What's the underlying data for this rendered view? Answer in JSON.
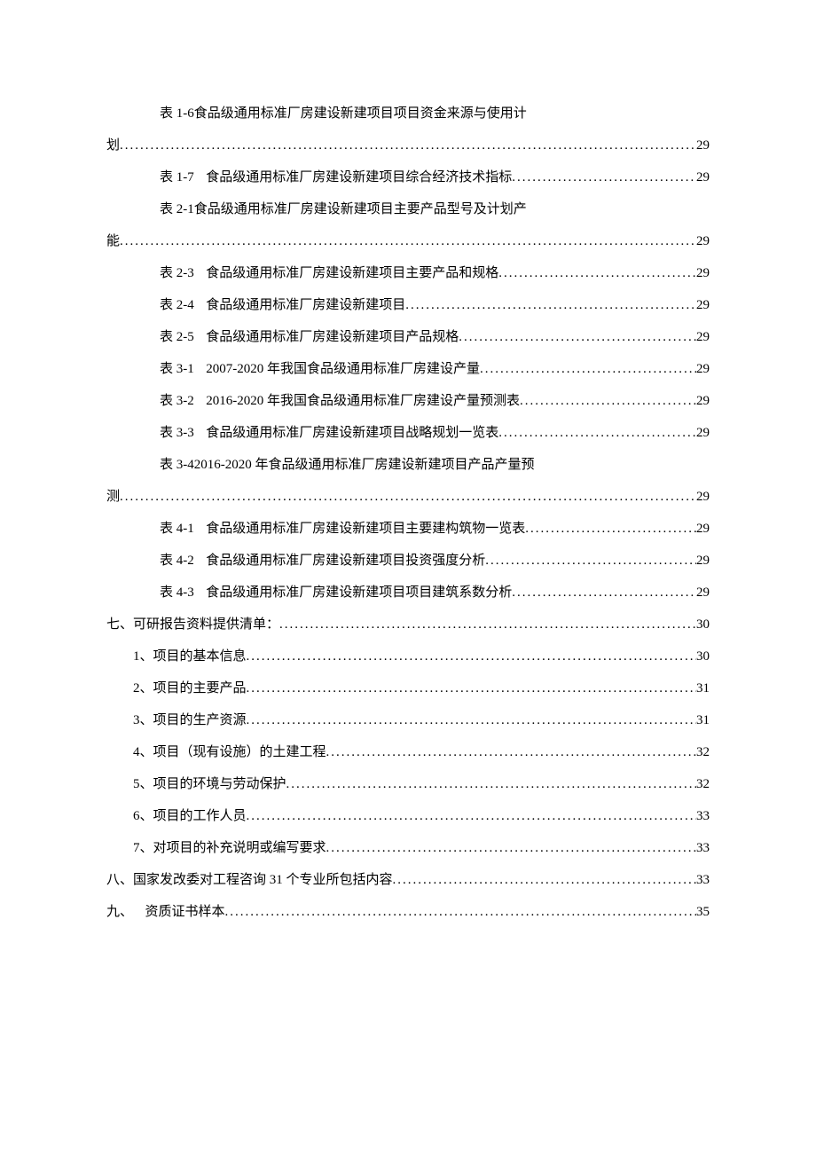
{
  "colors": {
    "text": "#000000",
    "background": "#ffffff"
  },
  "typography": {
    "font_family": "SimSun",
    "font_size_pt": 11,
    "line_height": 2.4
  },
  "toc": {
    "tables": [
      {
        "label": "表 1-6",
        "text_a": "食品级通用标准厂房建设新建项目项目资金来源与使用计",
        "wrap": "划",
        "page": "29"
      },
      {
        "label": "表 1-7",
        "text": "食品级通用标准厂房建设新建项目综合经济技术指标",
        "page": "29"
      },
      {
        "label": "表 2-1",
        "text_a": "食品级通用标准厂房建设新建项目主要产品型号及计划产",
        "wrap": "能",
        "page": "29"
      },
      {
        "label": "表 2-3",
        "text": "食品级通用标准厂房建设新建项目主要产品和规格",
        "page": "29"
      },
      {
        "label": "表 2-4",
        "text": "食品级通用标准厂房建设新建项目",
        "page": "29"
      },
      {
        "label": "表 2-5",
        "text": "食品级通用标准厂房建设新建项目产品规格",
        "page": "29"
      },
      {
        "label": "表 3-1",
        "text": "2007-2020 年我国食品级通用标准厂房建设产量",
        "page": "29"
      },
      {
        "label": "表 3-2",
        "text": "2016-2020 年我国食品级通用标准厂房建设产量预测表",
        "page": "29"
      },
      {
        "label": "表 3-3",
        "text": "食品级通用标准厂房建设新建项目战略规划一览表",
        "page": "29"
      },
      {
        "label": "表 3-4",
        "text_a": "2016-2020 年食品级通用标准厂房建设新建项目产品产量预",
        "wrap": "测",
        "page": "29"
      },
      {
        "label": "表 4-1",
        "text": "食品级通用标准厂房建设新建项目主要建构筑物一览表",
        "page": "29"
      },
      {
        "label": "表 4-2",
        "text": "食品级通用标准厂房建设新建项目投资强度分析",
        "page": "29"
      },
      {
        "label": "表 4-3",
        "text": "食品级通用标准厂房建设新建项目项目建筑系数分析",
        "page": "29"
      }
    ],
    "section7": {
      "label": "七、",
      "text": "可研报告资料提供清单：",
      "page": "30",
      "items": [
        {
          "label": "1、",
          "text": "项目的基本信息",
          "page": "30"
        },
        {
          "label": "2、",
          "text": "项目的主要产品",
          "page": "31"
        },
        {
          "label": "3、",
          "text": "项目的生产资源",
          "page": "31"
        },
        {
          "label": "4、",
          "text": "项目（现有设施）的土建工程",
          "page": "32"
        },
        {
          "label": "5、",
          "text": "项目的环境与劳动保护",
          "page": "32"
        },
        {
          "label": "6、",
          "text": "项目的工作人员",
          "page": "33"
        },
        {
          "label": "7、",
          "text": "对项目的补充说明或编写要求",
          "page": "33"
        }
      ]
    },
    "section8": {
      "label": "八、",
      "text": "国家发改委对工程咨询 31 个专业所包括内容",
      "page": "33"
    },
    "section9": {
      "label": "九、",
      "text": "资质证书样本",
      "page": "35"
    }
  }
}
